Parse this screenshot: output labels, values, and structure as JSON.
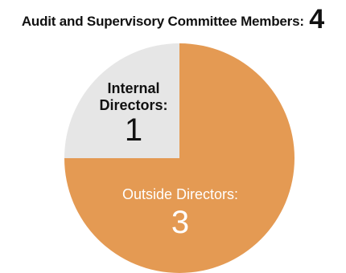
{
  "chart_data": {
    "type": "pie",
    "title": "Audit and Supervisory Committee Members:",
    "total": "4",
    "slices": [
      {
        "label_lines": [
          "Internal",
          "Directors:"
        ],
        "value": 1,
        "value_text": "1",
        "color": "#e6e6e6",
        "text_color": "#111111"
      },
      {
        "label_lines": [
          "Outside Directors:"
        ],
        "value": 3,
        "value_text": "3",
        "color": "#e49a53",
        "text_color": "#ffffff"
      }
    ]
  }
}
